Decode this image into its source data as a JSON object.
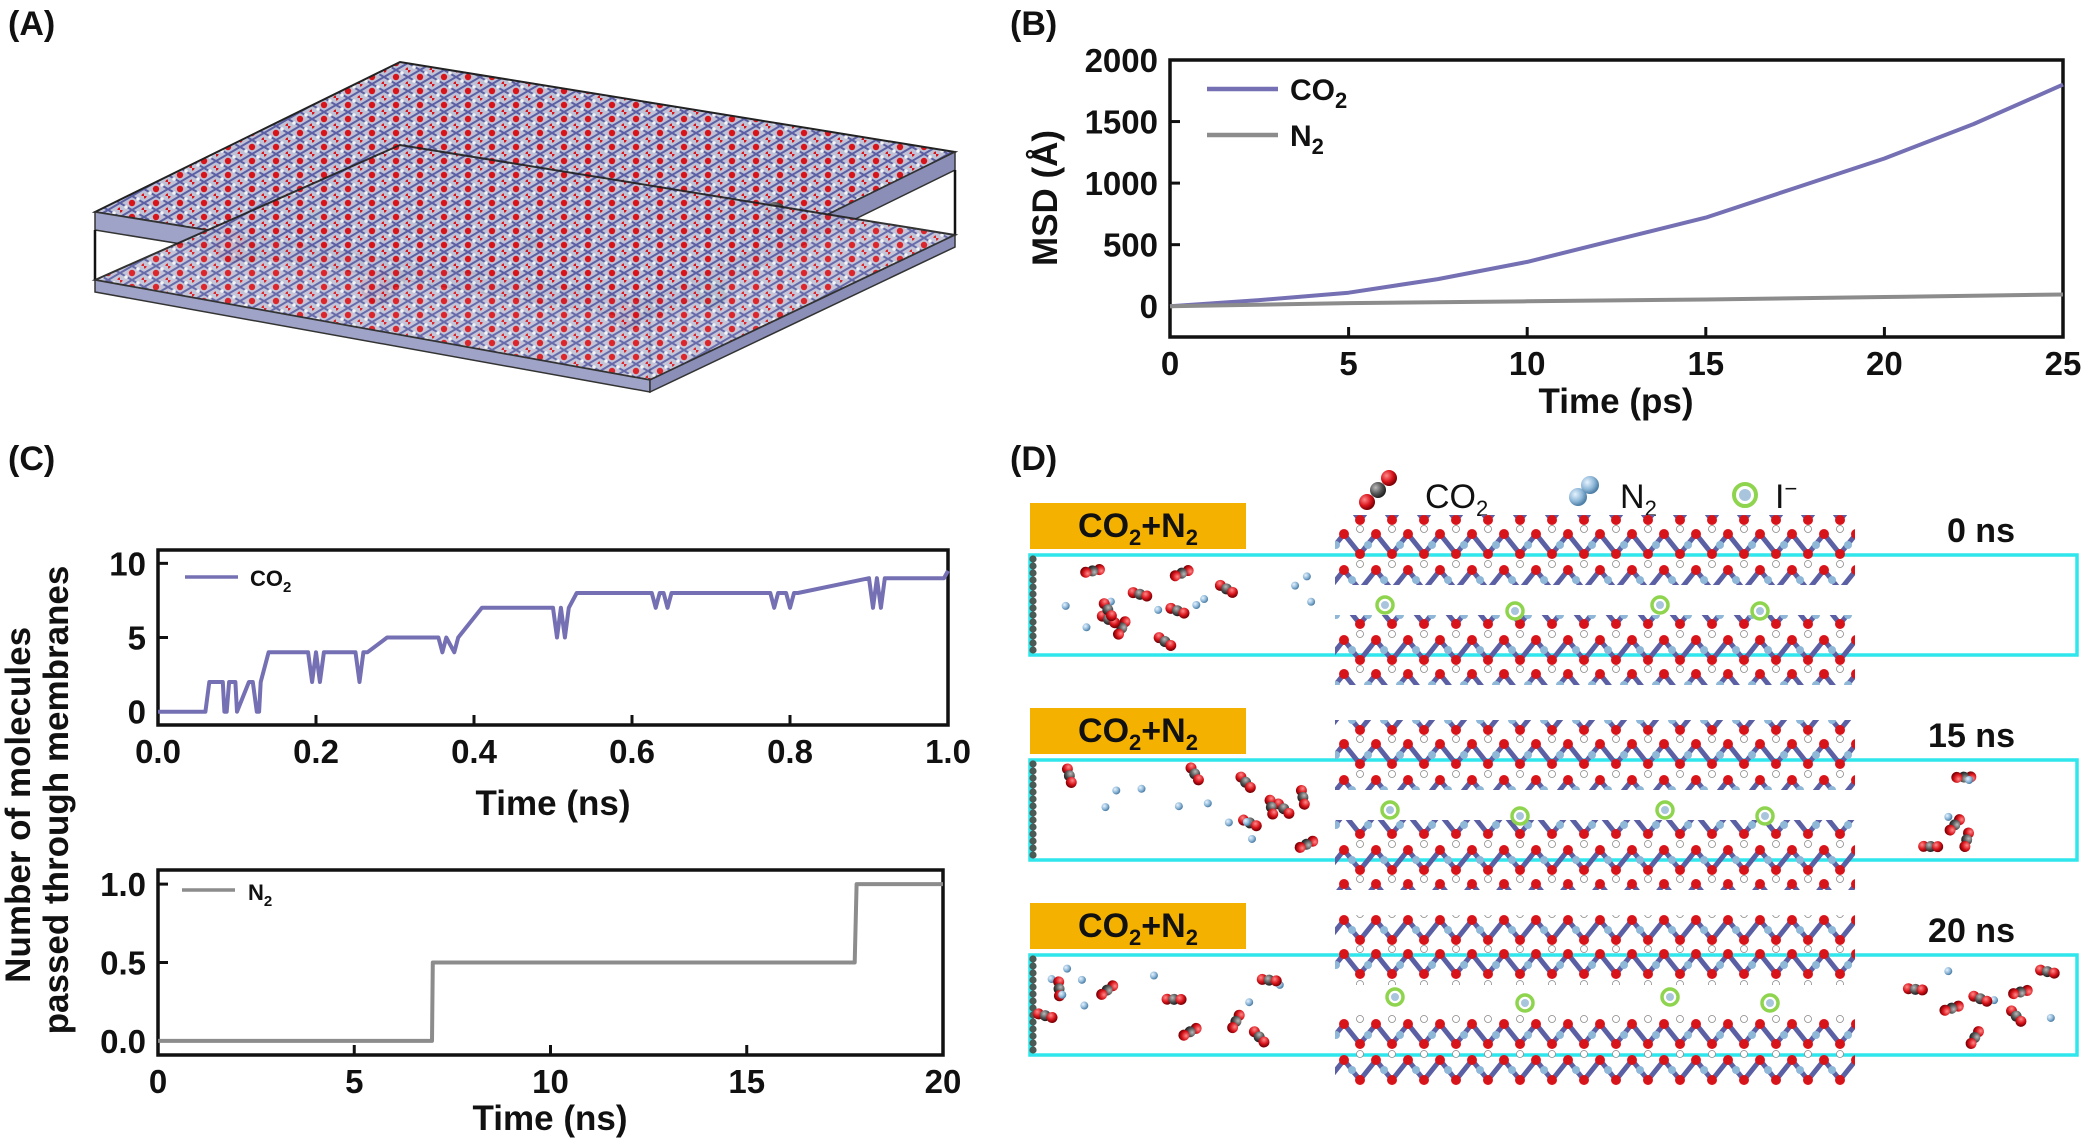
{
  "panels": {
    "a": "(A)",
    "b": "(B)",
    "c": "(C)",
    "d": "(D)"
  },
  "colors": {
    "co2": "#7570b3",
    "n2": "#8c8c8c",
    "oxygen": "#d8141b",
    "carbon": "#555555",
    "nitrogen": "#8fb8d8",
    "iodide": "#8fd44e",
    "box": "#2fe6ec",
    "label_bg": "#f5b100"
  },
  "chart_data": [
    {
      "id": "B",
      "type": "line",
      "xlabel": "Time (ps)",
      "ylabel": "MSD (Å)",
      "xlim": [
        0,
        25
      ],
      "ylim": [
        -250,
        2000
      ],
      "xticks": [
        0,
        5,
        10,
        15,
        20,
        25
      ],
      "yticks": [
        0,
        500,
        1000,
        1500,
        2000
      ],
      "legend_position": "top-left",
      "series": [
        {
          "name": "CO",
          "sub": "2",
          "key": "co2",
          "x": [
            0,
            2.5,
            5,
            7.5,
            10,
            12.5,
            15,
            17.5,
            20,
            22.5,
            25
          ],
          "y": [
            0,
            50,
            110,
            220,
            360,
            540,
            720,
            960,
            1200,
            1480,
            1800
          ]
        },
        {
          "name": "N",
          "sub": "2",
          "key": "n2",
          "x": [
            0,
            5,
            10,
            15,
            20,
            25
          ],
          "y": [
            0,
            25,
            40,
            55,
            75,
            95
          ]
        }
      ]
    },
    {
      "id": "C-top",
      "type": "line",
      "xlabel": "Time (ns)",
      "ylabel": "",
      "xlim": [
        0,
        1.0
      ],
      "ylim": [
        -0.9,
        10.9
      ],
      "xticks": [
        0.0,
        0.2,
        0.4,
        0.6,
        0.8,
        1.0
      ],
      "xtick_labels": [
        "0.0",
        "0.2",
        "0.4",
        "0.6",
        "0.8",
        "1.0"
      ],
      "yticks": [
        0,
        5,
        10
      ],
      "legend_position": "top-left",
      "series": [
        {
          "name": "CO",
          "sub": "2",
          "key": "co2",
          "x": [
            0,
            0.06,
            0.065,
            0.082,
            0.084,
            0.087,
            0.09,
            0.098,
            0.1,
            0.115,
            0.12,
            0.125,
            0.128,
            0.13,
            0.14,
            0.19,
            0.195,
            0.2,
            0.205,
            0.21,
            0.215,
            0.22,
            0.25,
            0.255,
            0.26,
            0.265,
            0.29,
            0.355,
            0.36,
            0.365,
            0.375,
            0.38,
            0.41,
            0.5,
            0.505,
            0.51,
            0.515,
            0.52,
            0.53,
            0.625,
            0.63,
            0.635,
            0.64,
            0.645,
            0.65,
            0.655,
            0.775,
            0.78,
            0.785,
            0.795,
            0.8,
            0.805,
            0.81,
            0.9,
            0.905,
            0.91,
            0.915,
            0.92,
            0.93,
            0.995,
            1.0
          ],
          "y": [
            0,
            0,
            2,
            2,
            0,
            0,
            2,
            2,
            0,
            2,
            2,
            0,
            0,
            2,
            4,
            4,
            2,
            4,
            2,
            4,
            4,
            4,
            4,
            2,
            4,
            4,
            5,
            5,
            4,
            5,
            4,
            5,
            7,
            7,
            5,
            7,
            5,
            7,
            8,
            8,
            7,
            8,
            8,
            7,
            8,
            8,
            8,
            7,
            8,
            8,
            7,
            8,
            8,
            9,
            7,
            9,
            7,
            9,
            9,
            9,
            9.5
          ]
        }
      ]
    },
    {
      "id": "C-bottom",
      "type": "line",
      "xlabel": "Time (ns)",
      "ylabel": "Number of molecules passed through membranes",
      "ylabel_lines": [
        "Number of molecules",
        "passed through membranes"
      ],
      "xlim": [
        0,
        20
      ],
      "ylim": [
        -0.09,
        1.09
      ],
      "xticks": [
        0,
        5,
        10,
        15,
        20
      ],
      "yticks": [
        0.0,
        0.5,
        1.0
      ],
      "ytick_labels": [
        "0.0",
        "0.5",
        "1.0"
      ],
      "legend_position": "top-left",
      "series": [
        {
          "name": "N",
          "sub": "2",
          "key": "n2",
          "x": [
            0,
            6.98,
            7.0,
            17.75,
            17.8,
            20
          ],
          "y": [
            0,
            0,
            0.5,
            0.5,
            1.0,
            1.0
          ]
        }
      ]
    }
  ],
  "panel_d": {
    "legend": [
      {
        "name": "CO",
        "sub": "2",
        "icon": "co2-molecule-icon"
      },
      {
        "name": "N",
        "sub": "2",
        "icon": "n2-molecule-icon"
      },
      {
        "name": "I",
        "sup": "−",
        "icon": "iodide-ion-icon"
      }
    ],
    "snapshots": [
      {
        "time": "0 ns",
        "label": "CO",
        "sub": "2",
        "label_tail": "+N",
        "sub2": "2"
      },
      {
        "time": "15 ns",
        "label": "CO",
        "sub": "2",
        "label_tail": "+N",
        "sub2": "2"
      },
      {
        "time": "20 ns",
        "label": "CO",
        "sub": "2",
        "label_tail": "+N",
        "sub2": "2"
      }
    ]
  }
}
